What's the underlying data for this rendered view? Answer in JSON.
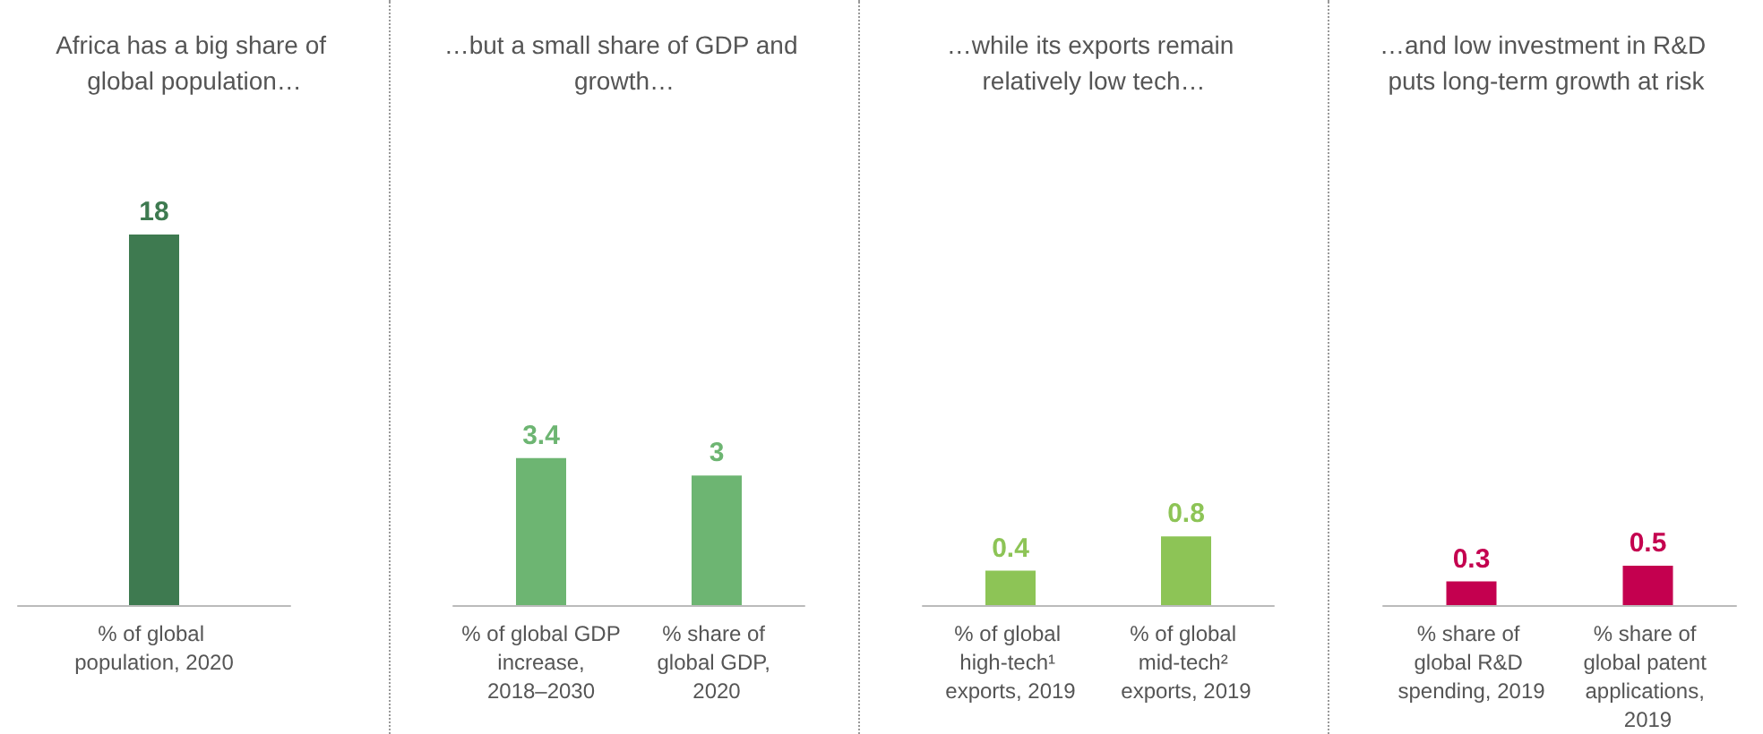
{
  "chart_data": [
    {
      "type": "bar",
      "title": "Africa has a big share of global population…",
      "categories": [
        "% of global population, 2020"
      ],
      "values": [
        18
      ],
      "color": "#3e7a50",
      "data_labels": true
    },
    {
      "type": "bar",
      "title": "…but a small share of GDP and growth…",
      "categories": [
        "% of global GDP increase, 2018–2030",
        "% share of global GDP, 2020"
      ],
      "values": [
        3.4,
        3
      ],
      "color": "#6db572",
      "data_labels": true
    },
    {
      "type": "bar",
      "title": "…while its exports remain relatively low tech…",
      "categories": [
        "% of global high-tech¹ exports, 2019",
        "% of global mid-tech² exports, 2019"
      ],
      "values": [
        0.4,
        0.8
      ],
      "color": "#8dc456",
      "data_labels": true
    },
    {
      "type": "bar",
      "title": "…and low investment in R&D puts long-term growth at risk",
      "categories": [
        "% share of global R&D spending, 2019",
        "% share of global patent applications, 2019"
      ],
      "values": [
        0.3,
        0.5
      ],
      "color": "#c4004f",
      "data_labels": true
    }
  ]
}
